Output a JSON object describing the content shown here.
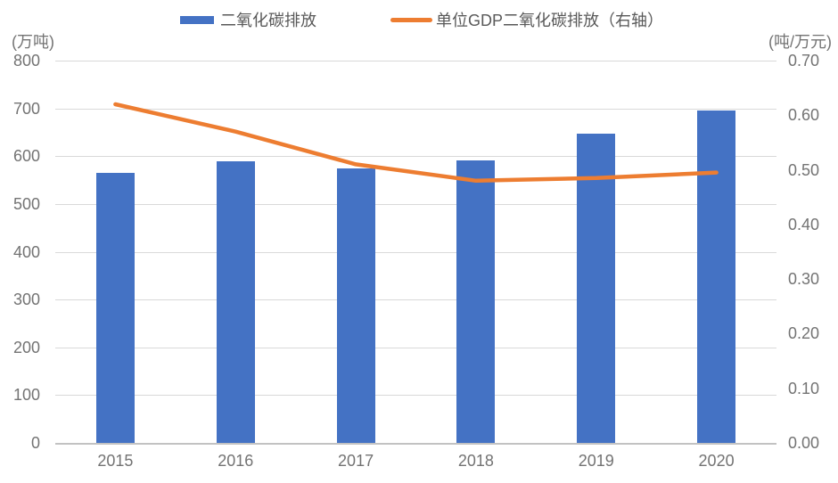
{
  "legend": {
    "items": [
      {
        "label": "二氧化碳排放",
        "color": "#4472C4",
        "marker": "bar"
      },
      {
        "label": "单位GDP二氧化碳排放（右轴）",
        "color": "#ED7D31",
        "marker": "line"
      }
    ]
  },
  "left_axis": {
    "title": "(万吨)",
    "max": 800,
    "labels": [
      "800",
      "700",
      "600",
      "500",
      "400",
      "300",
      "200",
      "100",
      "0"
    ]
  },
  "right_axis": {
    "title": "(吨/万元)",
    "max": 0.7,
    "labels": [
      "0.70",
      "0.60",
      "0.50",
      "0.40",
      "0.30",
      "0.20",
      "0.10",
      "0.00"
    ]
  },
  "chart_data": {
    "type": "combo",
    "categories": [
      "2015",
      "2016",
      "2017",
      "2018",
      "2019",
      "2020"
    ],
    "series": [
      {
        "name": "二氧化碳排放",
        "type": "bar",
        "axis": "left",
        "color": "#4472C4",
        "values": [
          565,
          590,
          575,
          592,
          648,
          695
        ]
      },
      {
        "name": "单位GDP二氧化碳排放（右轴）",
        "type": "line",
        "axis": "right",
        "color": "#ED7D31",
        "values": [
          0.62,
          0.57,
          0.51,
          0.48,
          0.485,
          0.495
        ]
      }
    ],
    "title": "",
    "xlabel": "",
    "ylabel_left": "(万吨)",
    "ylabel_right": "(吨/万元)",
    "left_ylim": [
      0,
      800
    ],
    "right_ylim": [
      0,
      0.7
    ],
    "grid": true,
    "legend_position": "top"
  },
  "colors": {
    "bar": "#4472C4",
    "line": "#ED7D31",
    "gridline": "#D9D9D9",
    "axis_line": "#C2C2C2",
    "tick_text": "#737373",
    "legend_text": "#595959"
  }
}
